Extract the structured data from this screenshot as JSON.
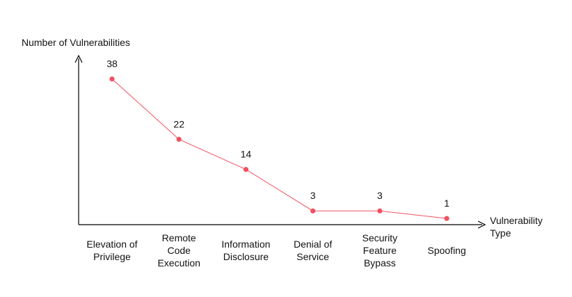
{
  "chart_data": {
    "type": "line",
    "ylabel": "Number of Vulnerabilities",
    "xlabel": "Vulnerability Type",
    "categories": [
      "Elevation of Privilege",
      "Remote Code Execution",
      "Information Disclosure",
      "Denial of Service",
      "Security Feature Bypass",
      "Spoofing"
    ],
    "series": [
      {
        "values": [
          38,
          22,
          14,
          3,
          3,
          1
        ],
        "color": "#f0505f"
      }
    ],
    "data_labels": [
      "38",
      "22",
      "14",
      "3",
      "3",
      "1"
    ],
    "ylim": [
      0,
      45
    ],
    "grid": false,
    "legend": "none"
  }
}
